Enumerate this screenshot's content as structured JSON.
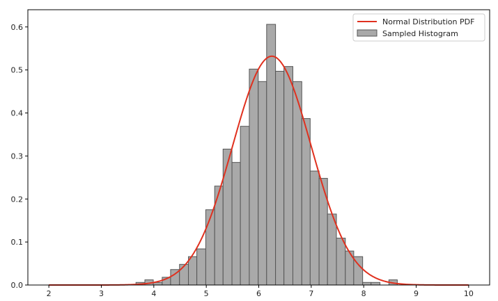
{
  "chart_data": {
    "type": "bar",
    "title": "",
    "xlabel": "",
    "ylabel": "",
    "xlim": [
      1.6,
      10.4
    ],
    "ylim": [
      0.0,
      0.64
    ],
    "xticks": [
      "2",
      "3",
      "4",
      "5",
      "6",
      "7",
      "8",
      "9",
      "10"
    ],
    "yticks": [
      "0.0",
      "0.1",
      "0.2",
      "0.3",
      "0.4",
      "0.5",
      "0.6"
    ],
    "grid": false,
    "legend_position": "top-right",
    "histogram": {
      "name": "Sampled Histogram",
      "color": "#a9a9a9",
      "edgecolor": "#555555",
      "bin_edges": [
        3.66,
        3.83,
        3.99,
        4.16,
        4.32,
        4.49,
        4.66,
        4.82,
        4.99,
        5.16,
        5.32,
        5.49,
        5.65,
        5.82,
        5.99,
        6.15,
        6.32,
        6.48,
        6.65,
        6.82,
        6.98,
        7.15,
        7.31,
        7.48,
        7.65,
        7.81,
        7.98,
        8.14,
        8.31,
        8.48,
        8.64
      ],
      "values": [
        0.006,
        0.012,
        0.006,
        0.018,
        0.036,
        0.048,
        0.066,
        0.084,
        0.175,
        0.23,
        0.316,
        0.285,
        0.369,
        0.502,
        0.473,
        0.606,
        0.497,
        0.508,
        0.473,
        0.387,
        0.265,
        0.248,
        0.165,
        0.109,
        0.079,
        0.066,
        0.006,
        0.006,
        0.0,
        0.012
      ]
    },
    "curve": {
      "name": "Normal Distribution PDF",
      "color": "#e0301e",
      "function": "normal_pdf",
      "mean": 6.25,
      "std": 0.75,
      "x_range": [
        2,
        10
      ]
    }
  }
}
